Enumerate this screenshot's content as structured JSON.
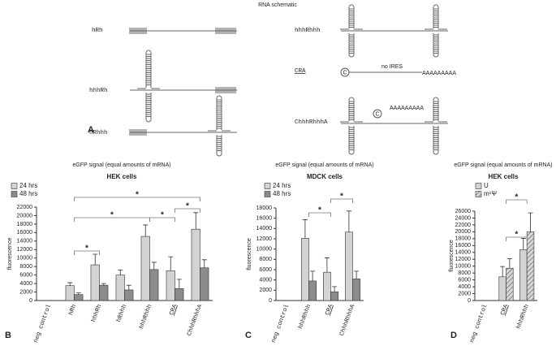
{
  "schematic": {
    "title": "RNA schematic",
    "panel": "A",
    "constructs": [
      {
        "label": "hRh"
      },
      {
        "label": "hhhRh"
      },
      {
        "label": "hRhhh"
      },
      {
        "label": "hhhRhhh"
      },
      {
        "label": "CRA",
        "underline": true
      },
      {
        "label": "ChhhRhhhA"
      }
    ],
    "annotation": "no IRES",
    "cap": "C",
    "polyA": "AAAAAAAAA"
  },
  "chart_data": [
    {
      "type": "bar",
      "panel": "B",
      "title": "eGFP signal (equal amounts of mRNA)",
      "subtitle": "HEK cells",
      "y_label": "fluorescence",
      "categories": [
        "neg control",
        "hRh",
        "hhhRh",
        "hRhhh",
        "hhhRhhh",
        "CRA",
        "ChhhRhhhA"
      ],
      "series": [
        {
          "name": "24 hrs",
          "color": "#d3d3d3",
          "values": [
            0,
            3500,
            8400,
            6000,
            15100,
            7000,
            16800
          ],
          "errors": [
            null,
            700,
            2500,
            1200,
            2700,
            3300,
            3900
          ]
        },
        {
          "name": "48 hrs",
          "color": "#8c8c8c",
          "values": [
            0,
            1400,
            3600,
            2500,
            7300,
            2800,
            7700
          ],
          "errors": [
            null,
            400,
            400,
            1100,
            1700,
            2200,
            1900
          ]
        }
      ],
      "ylim": [
        0,
        22000
      ],
      "yticks": [
        0,
        2000,
        4000,
        6000,
        8000,
        10000,
        12000,
        14000,
        16000,
        18000,
        20000,
        22000
      ],
      "legend": "top-left",
      "significance": [
        "*",
        "*",
        "*",
        "*",
        "*"
      ]
    },
    {
      "type": "bar",
      "panel": "C",
      "title": "eGFP signal (equal amounts of mRNA)",
      "subtitle": "MDCK cells",
      "y_label": "fluorescence",
      "categories": [
        "neg control",
        "hhhRhhh",
        "CRA",
        "ChhhRhhhA"
      ],
      "series": [
        {
          "name": "24 hrs",
          "color": "#d3d3d3",
          "values": [
            0,
            12100,
            5500,
            13300
          ],
          "errors": [
            null,
            3600,
            2800,
            4100
          ]
        },
        {
          "name": "48 hrs",
          "color": "#8c8c8c",
          "values": [
            0,
            3800,
            1700,
            4200
          ],
          "errors": [
            null,
            1900,
            1000,
            1500
          ]
        }
      ],
      "ylim": [
        0,
        18000
      ],
      "yticks": [
        0,
        2000,
        4000,
        6000,
        8000,
        10000,
        12000,
        14000,
        16000,
        18000
      ],
      "legend": "top-left",
      "significance": [
        "*",
        "*"
      ]
    },
    {
      "type": "bar",
      "panel": "D",
      "title": "eGFP signal (equal amounts of mRNA)",
      "subtitle": "HEK cells",
      "y_label": "fluorescence",
      "categories": [
        "neg control",
        "CRA",
        "hhhRhhh"
      ],
      "series": [
        {
          "name": "U",
          "color": "#d3d3d3",
          "values": [
            0,
            6900,
            14800
          ],
          "errors": [
            null,
            3000,
            3300
          ]
        },
        {
          "name": "m¹Ψ",
          "color": "#bdbdbd",
          "hatch": true,
          "values": [
            0,
            9400,
            20000
          ],
          "errors": [
            null,
            2800,
            5500
          ]
        }
      ],
      "ylim": [
        0,
        26000
      ],
      "yticks": [
        0,
        2000,
        4000,
        6000,
        8000,
        10000,
        12000,
        14000,
        16000,
        18000,
        20000,
        22000,
        24000,
        26000
      ],
      "legend": "top-left",
      "significance": [
        "*",
        "*"
      ]
    }
  ]
}
